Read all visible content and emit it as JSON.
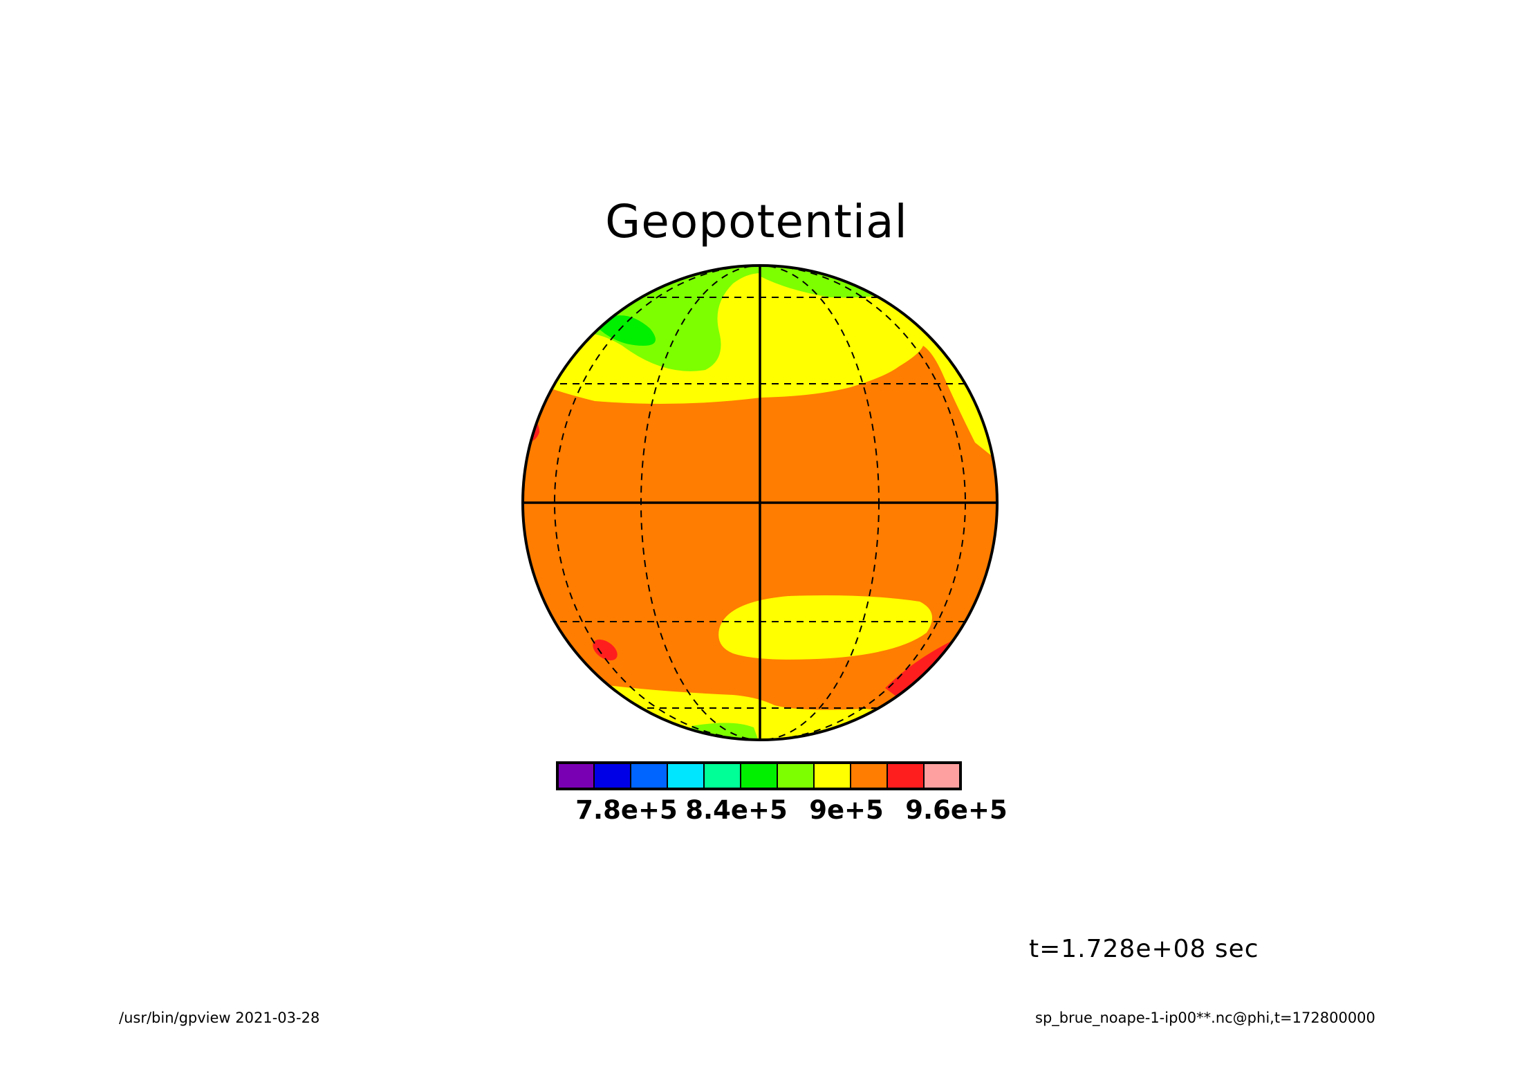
{
  "title": "Geopotential",
  "time_label": "t=1.728e+08 sec",
  "footer": {
    "left": "/usr/bin/gpview  2021-03-28",
    "right": "sp_brue_noape-1-ip00**.nc@phi,t=172800000"
  },
  "colorbar": {
    "colors": [
      "#7a00b4",
      "#0000e6",
      "#0064ff",
      "#00e6ff",
      "#00ff96",
      "#00f000",
      "#7dff00",
      "#ffff00",
      "#ff7d00",
      "#ff1e1e",
      "#ffa0a0"
    ],
    "tick_labels": [
      "7.8e+5",
      "8.4e+5",
      "9e+5",
      "9.6e+5"
    ]
  },
  "map": {
    "projection": "orthographic",
    "field": "phi",
    "dominant_color": "#ff7d00",
    "regions": [
      {
        "name": "north-high-latitude-yellow",
        "color": "#ffff00"
      },
      {
        "name": "north-polar-green",
        "color": "#7dff00"
      },
      {
        "name": "north-polar-dark-green",
        "color": "#00f000"
      },
      {
        "name": "southern-yellow-patch",
        "color": "#ffff00"
      },
      {
        "name": "south-polar-yellow",
        "color": "#ffff00"
      },
      {
        "name": "south-polar-green",
        "color": "#7dff00"
      },
      {
        "name": "red-spots",
        "color": "#ff1e1e"
      }
    ]
  }
}
